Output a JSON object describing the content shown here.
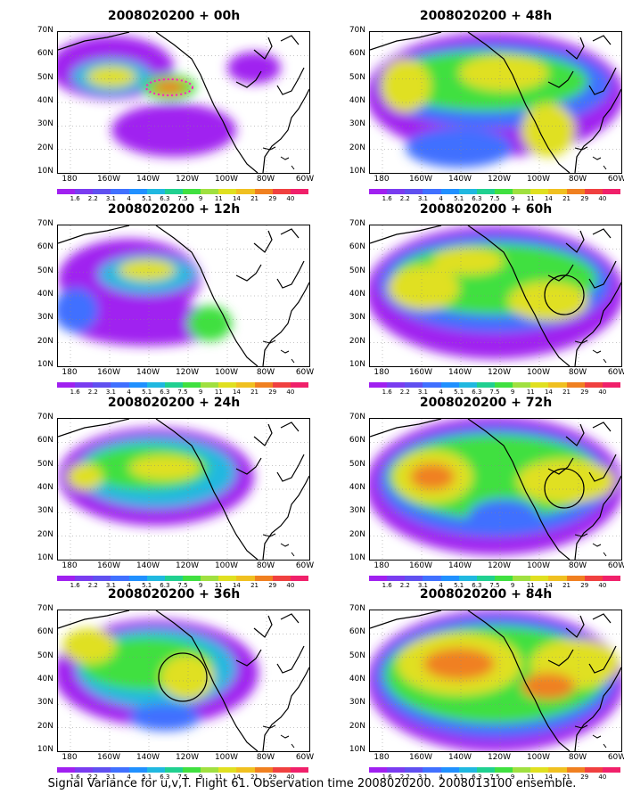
{
  "panels": [
    {
      "title": "2008020200 + 00h"
    },
    {
      "title": "2008020200 + 48h"
    },
    {
      "title": "2008020200 + 12h"
    },
    {
      "title": "2008020200 + 60h"
    },
    {
      "title": "2008020200 + 24h"
    },
    {
      "title": "2008020200 + 72h"
    },
    {
      "title": "2008020200 + 36h"
    },
    {
      "title": "2008020200 + 84h"
    }
  ],
  "y_axis_labels": [
    "70N",
    "60N",
    "50N",
    "40N",
    "30N",
    "20N",
    "10N"
  ],
  "x_axis_labels": [
    "180",
    "160W",
    "140W",
    "120W",
    "100W",
    "80W",
    "60W"
  ],
  "colorbar": {
    "labels": [
      "1.6",
      "2.2",
      "3.1",
      "4",
      "5.1",
      "6.3",
      "7.5",
      "9",
      "11",
      "14",
      "21",
      "29",
      "40"
    ],
    "colors": [
      "#a020f0",
      "#7a3cf0",
      "#6050f0",
      "#4070ff",
      "#2090ff",
      "#20b8e0",
      "#20d090",
      "#40e040",
      "#a0e040",
      "#e0e020",
      "#f0c020",
      "#f08020",
      "#f04040",
      "#f0206a"
    ]
  },
  "caption": "Signal Variance for u,v,T. Flight 61. Observation time 2008020200. 2008013100 ensemble."
}
